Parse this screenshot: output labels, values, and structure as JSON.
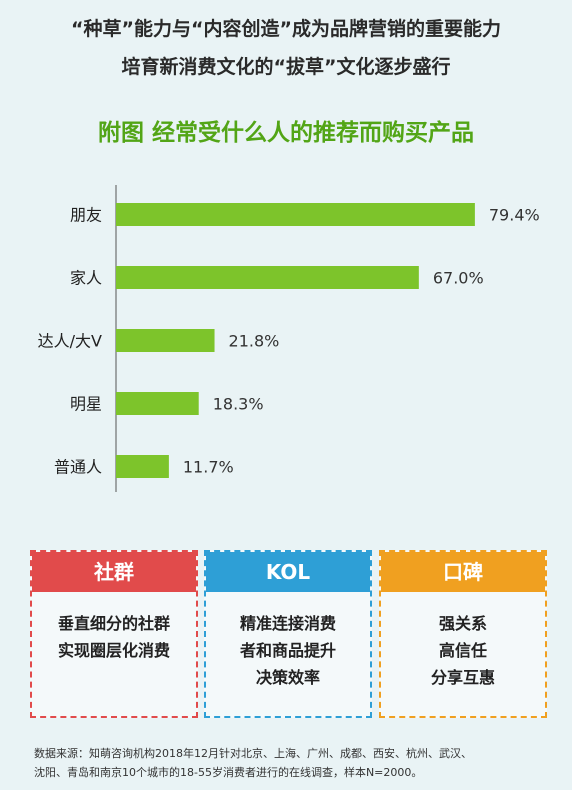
{
  "header": {
    "line1": "“种草”能力与“内容创造”成为品牌营销的重要能力",
    "line2": "培育新消费文化的“拔草”文化逐步盛行"
  },
  "chart_data": {
    "type": "bar",
    "orientation": "horizontal",
    "title": "附图 经常受什么人的推荐而购买产品",
    "categories": [
      "朋友",
      "家人",
      "达人/大V",
      "明星",
      "普通人"
    ],
    "values": [
      79.4,
      67.0,
      21.8,
      18.3,
      11.7
    ],
    "value_labels": [
      "79.4%",
      "67.0%",
      "21.8%",
      "18.3%",
      "11.7%"
    ],
    "unit": "%",
    "xlim": [
      0,
      100
    ],
    "grid": false,
    "bar_color": "#7dc42b"
  },
  "cards": [
    {
      "title": "社群",
      "lines": [
        "垂直细分的社群",
        "实现圈层化消费"
      ]
    },
    {
      "title": "KOL",
      "lines": [
        "精准连接消费",
        "者和商品提升",
        "决策效率"
      ]
    },
    {
      "title": "口碑",
      "lines": [
        "强关系",
        "高信任",
        "分享互惠"
      ]
    }
  ],
  "source": {
    "line1": "数据来源：知萌咨询机构2018年12月针对北京、上海、广州、成都、西安、杭州、武汉、",
    "line2": "沈阳、青岛和南京10个城市的18-55岁消费者进行的在线调查，样本N=2000。"
  }
}
